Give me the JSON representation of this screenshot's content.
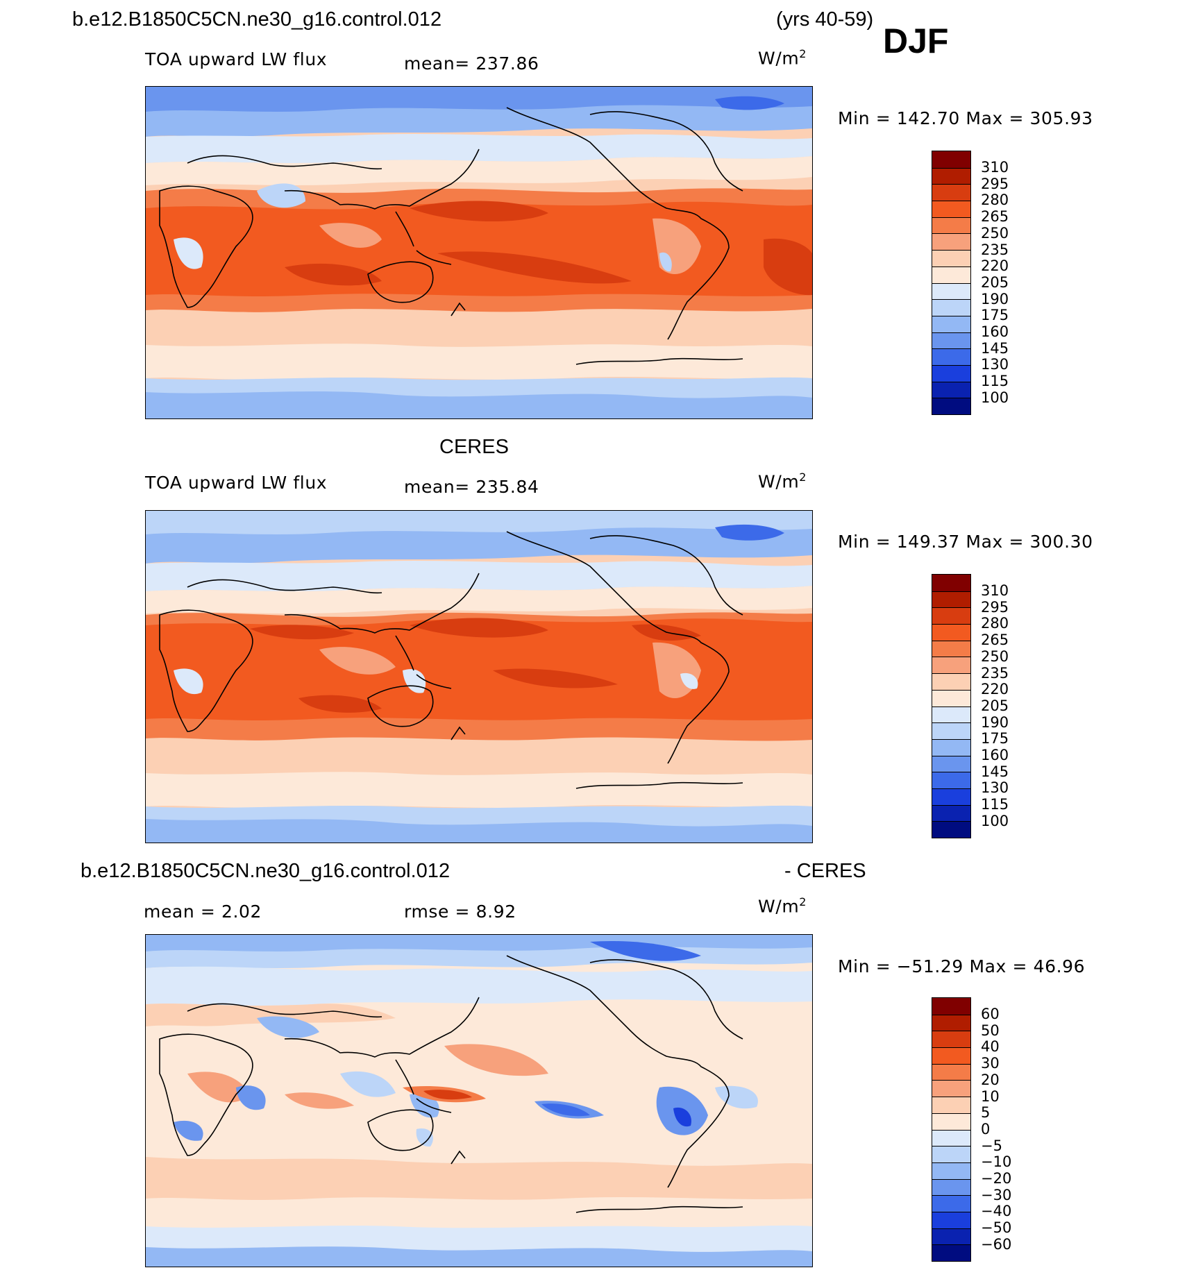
{
  "header": {
    "case": "b.e12.B1850C5CN.ne30_g16.control.012",
    "years": "(yrs 40-59)",
    "season": "DJF"
  },
  "panels": [
    {
      "id": "model",
      "variable": "TOA upward LW flux",
      "mean": "mean=  237.86",
      "units": "W/m",
      "units_exp": "2",
      "minmax": "Min  =  142.70  Max  =  305.93",
      "levels": [
        "310",
        "295",
        "280",
        "265",
        "250",
        "235",
        "220",
        "205",
        "190",
        "175",
        "160",
        "145",
        "130",
        "115",
        "100"
      ]
    },
    {
      "id": "obs",
      "title": "CERES",
      "variable": "TOA upward LW flux",
      "mean": "mean=  235.84",
      "units": "W/m",
      "units_exp": "2",
      "minmax": "Min  =  149.37  Max  =  300.30",
      "levels": [
        "310",
        "295",
        "280",
        "265",
        "250",
        "235",
        "220",
        "205",
        "190",
        "175",
        "160",
        "145",
        "130",
        "115",
        "100"
      ]
    },
    {
      "id": "diff",
      "title_left": "b.e12.B1850C5CN.ne30_g16.control.012",
      "title_right": "- CERES",
      "mean": "mean  =     2.02",
      "rmse": "rmse  =     8.92",
      "units": "W/m",
      "units_exp": "2",
      "minmax": "Min  =  −51.29  Max  =    46.96",
      "levels": [
        "60",
        "50",
        "40",
        "30",
        "20",
        "10",
        "5",
        "0",
        "−5",
        "−10",
        "−20",
        "−30",
        "−40",
        "−50",
        "−60"
      ]
    }
  ],
  "colors": {
    "palette": [
      "#800000",
      "#b01d00",
      "#d83d10",
      "#f25a20",
      "#f47c48",
      "#f7a17c",
      "#fcd0b4",
      "#fde9d9",
      "#dce9fa",
      "#bcd5f8",
      "#93b8f4",
      "#6a95ee",
      "#3c6ae9",
      "#1a3fdd",
      "#0a22b0",
      "#000c80"
    ],
    "coast": "#000000"
  }
}
